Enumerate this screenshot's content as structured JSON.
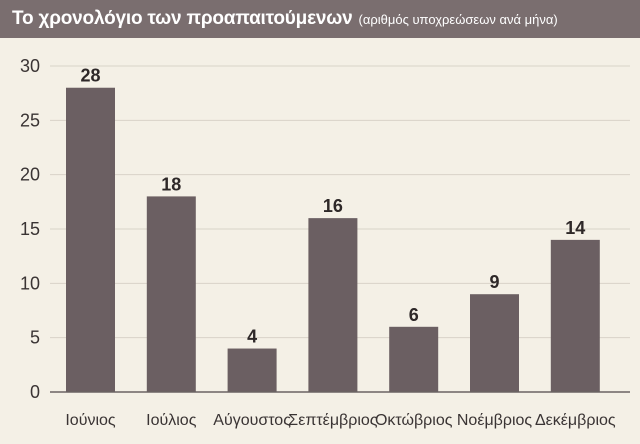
{
  "chart_data": {
    "type": "bar",
    "title": "Το χρονολόγιο των προαπαιτούμενων",
    "subtitle": "(αριθμός υποχρεώσεων ανά μήνα)",
    "categories": [
      "Ιούνιος",
      "Ιούλιος",
      "Αύγουστος",
      "Σεπτέμβριος",
      "Οκτώβριος",
      "Νοέμβριος",
      "Δεκέμβριος"
    ],
    "values": [
      28,
      18,
      4,
      16,
      6,
      9,
      14
    ],
    "ylim": [
      0,
      30
    ],
    "yticks": [
      0,
      5,
      10,
      15,
      20,
      25,
      30
    ],
    "xlabel": "",
    "ylabel": "",
    "grid": true,
    "data_labels": true
  },
  "colors": {
    "bar": "#6b5f62",
    "title_bar": "#7a6e6f",
    "background": "#f4f0e6",
    "gridline": "#d9d3c8",
    "axis": "#6b6363"
  }
}
